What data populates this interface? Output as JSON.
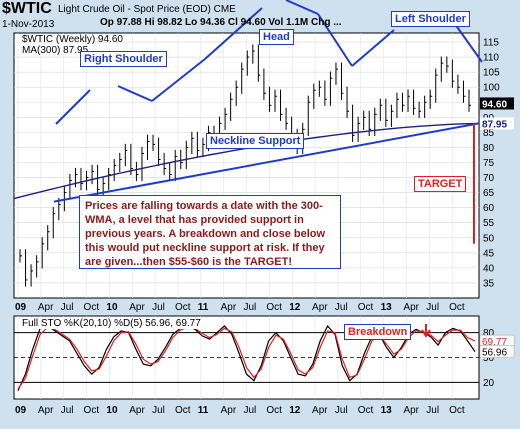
{
  "header": {
    "symbol": "$WTIC",
    "name": "Light Crude Oil - Spot Price (EOD)",
    "exchange": "CME",
    "date": "1-Nov-2013",
    "quote": "Op 97.88  Hi 98.82  Lo 94.36  Cl 94.60  Vol 1.1M  Chg ...",
    "legend_price": "$WTIC (Weekly) 94.60",
    "legend_ma": "MA(300) 87.95",
    "legend_sto": "Full STO %K(20,10) %D(5) 56.96, 69.77"
  },
  "annotations": {
    "right_shoulder": "Right Shoulder",
    "head": "Head",
    "left_shoulder": "Left Shoulder",
    "neckline": "Neckline Support",
    "target": "TARGET",
    "breakdown": "Breakdown",
    "note": "Prices are falling towards a date with the 300-WMA, a level that has provided support in previous years. A breakdown and close below this would put neckline support at risk. If they are given...then $55-$60 is the TARGET!"
  },
  "colors": {
    "background": "#cfe0ee",
    "panel": "#ffffff",
    "price_bars": "#000000",
    "ma": "#1a237e",
    "annotation_blue": "#1e3cc8",
    "target_red": "#e02020",
    "k_line": "#000000",
    "d_line": "#e02020",
    "current_price_tag": "#000000",
    "ma_tag": "#1a237e"
  },
  "chart_data": [
    {
      "type": "bar",
      "title": "$WTIC Light Crude Oil - Spot Price (EOD) CME",
      "ylim": [
        30,
        118
      ],
      "y_ticks": [
        35,
        40,
        45,
        50,
        55,
        60,
        65,
        70,
        75,
        80,
        85,
        90,
        95,
        100,
        105,
        110,
        115
      ],
      "x_ticks": [
        "09",
        "Apr",
        "Jul",
        "Oct",
        "10",
        "Apr",
        "Jul",
        "Oct",
        "11",
        "Apr",
        "Jul",
        "Oct",
        "12",
        "Apr",
        "Jul",
        "Oct",
        "13",
        "Apr",
        "Jul",
        "Oct"
      ],
      "price_close_weekly_approx": [
        44,
        36,
        39,
        42,
        48,
        52,
        58,
        61,
        65,
        69,
        71,
        68,
        70,
        72,
        66,
        68,
        71,
        74,
        76,
        79,
        73,
        71,
        78,
        82,
        81,
        76,
        73,
        71,
        77,
        75,
        80,
        83,
        79,
        81,
        85,
        82,
        88,
        91,
        96,
        100,
        106,
        110,
        112,
        104,
        98,
        94,
        97,
        91,
        88,
        84,
        80,
        86,
        95,
        99,
        100,
        96,
        103,
        106,
        98,
        92,
        84,
        88,
        90,
        86,
        91,
        94,
        89,
        92,
        96,
        94,
        97,
        93,
        92,
        95,
        97,
        104,
        108,
        107,
        102,
        100,
        97,
        94
      ],
      "series": [
        {
          "name": "$WTIC (Weekly)",
          "last": 94.6
        },
        {
          "name": "MA(300)",
          "last": 87.95,
          "start": 63,
          "end": 87.95
        }
      ],
      "neckline": {
        "start_value": 62,
        "end_value": 88
      },
      "price_tag": 94.6,
      "ma_tag": 87.95
    },
    {
      "type": "line",
      "title": "Full STO %K(20,10) %D(5)",
      "ylim": [
        0,
        100
      ],
      "y_ticks": [
        20,
        50,
        80
      ],
      "x_ticks": [
        "09",
        "Apr",
        "Jul",
        "Oct",
        "10",
        "Apr",
        "Jul",
        "Oct",
        "11",
        "Apr",
        "Jul",
        "Oct",
        "12",
        "Apr",
        "Jul",
        "Oct",
        "13",
        "Apr",
        "Jul",
        "Oct"
      ],
      "series": [
        {
          "name": "%K(20,10)",
          "last": 56.96,
          "values": [
            10,
            30,
            60,
            85,
            88,
            82,
            76,
            70,
            55,
            40,
            30,
            38,
            60,
            75,
            82,
            80,
            60,
            42,
            40,
            48,
            62,
            78,
            85,
            88,
            84,
            76,
            72,
            80,
            88,
            78,
            55,
            30,
            22,
            40,
            70,
            80,
            70,
            50,
            30,
            28,
            42,
            70,
            88,
            78,
            40,
            22,
            30,
            55,
            75,
            78,
            62,
            50,
            62,
            78,
            84,
            80,
            75,
            65,
            80,
            85,
            82,
            70,
            57
          ]
        },
        {
          "name": "%D(5)",
          "last": 69.77,
          "values": [
            12,
            25,
            52,
            78,
            86,
            84,
            78,
            72,
            60,
            45,
            34,
            36,
            52,
            70,
            80,
            81,
            66,
            48,
            42,
            45,
            58,
            74,
            83,
            86,
            85,
            79,
            74,
            78,
            85,
            81,
            62,
            38,
            26,
            36,
            62,
            77,
            72,
            55,
            35,
            30,
            38,
            62,
            82,
            80,
            48,
            26,
            29,
            48,
            70,
            77,
            66,
            54,
            60,
            74,
            82,
            81,
            77,
            69,
            77,
            83,
            83,
            74,
            70
          ]
        }
      ],
      "tags": [
        69.77,
        56.96
      ]
    }
  ]
}
